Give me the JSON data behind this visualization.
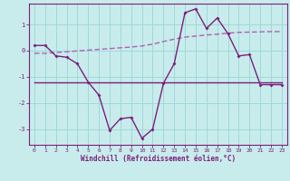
{
  "x": [
    0,
    1,
    2,
    3,
    4,
    5,
    6,
    7,
    8,
    9,
    10,
    11,
    12,
    13,
    14,
    15,
    16,
    17,
    18,
    19,
    20,
    21,
    22,
    23
  ],
  "line_jagged": [
    0.2,
    0.2,
    -0.2,
    -0.25,
    -0.5,
    -1.2,
    -1.7,
    -3.05,
    -2.6,
    -2.55,
    -3.35,
    -3.0,
    -1.25,
    -0.5,
    1.45,
    1.6,
    0.85,
    1.25,
    0.65,
    -0.2,
    -0.15,
    -1.3,
    -1.3,
    -1.3
  ],
  "line_flat": [
    -1.2,
    -1.2,
    -1.2,
    -1.2,
    -1.2,
    -1.2,
    -1.2,
    -1.2,
    -1.2,
    -1.2,
    -1.2,
    -1.2,
    -1.2,
    -1.2,
    -1.2,
    -1.2,
    -1.2,
    -1.2,
    -1.2,
    -1.2,
    -1.2,
    -1.2,
    -1.2,
    -1.2
  ],
  "line_dashed": [
    -0.1,
    -0.1,
    -0.07,
    -0.04,
    -0.01,
    0.02,
    0.05,
    0.08,
    0.11,
    0.14,
    0.18,
    0.25,
    0.35,
    0.44,
    0.52,
    0.56,
    0.6,
    0.63,
    0.67,
    0.7,
    0.71,
    0.72,
    0.73,
    0.73
  ],
  "color_jagged": "#7b1f7b",
  "color_flat": "#7b1f7b",
  "color_dashed": "#b060b0",
  "bg_color": "#c8ecec",
  "grid_color": "#a0d8d8",
  "axis_color": "#7b1f7b",
  "xlabel": "Windchill (Refroidissement éolien,°C)",
  "xlim": [
    -0.5,
    23.5
  ],
  "ylim": [
    -3.6,
    1.8
  ],
  "yticks": [
    1,
    0,
    -1,
    -2,
    -3
  ],
  "xticks": [
    0,
    1,
    2,
    3,
    4,
    5,
    6,
    7,
    8,
    9,
    10,
    11,
    12,
    13,
    14,
    15,
    16,
    17,
    18,
    19,
    20,
    21,
    22,
    23
  ]
}
